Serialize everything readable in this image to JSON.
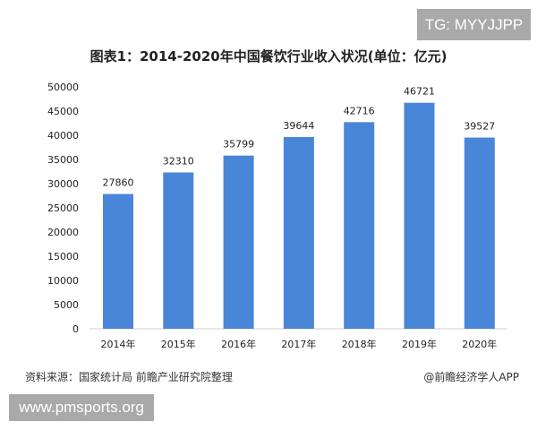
{
  "watermarks": {
    "tg": "TG: MYYJJPP",
    "site": "www.pmsports.org"
  },
  "chart_data": {
    "type": "bar",
    "title": "图表1：2014-2020年中国餐饮行业收入状况(单位：亿元)",
    "categories": [
      "2014年",
      "2015年",
      "2016年",
      "2017年",
      "2018年",
      "2019年",
      "2020年"
    ],
    "values": [
      27860,
      32310,
      35799,
      39644,
      42716,
      46721,
      39527
    ],
    "ylim": [
      0,
      50000
    ],
    "yticks": [
      0,
      5000,
      10000,
      15000,
      20000,
      25000,
      30000,
      35000,
      40000,
      45000,
      50000
    ],
    "xlabel": "",
    "ylabel": "",
    "grid": false,
    "bar_color": "#4a86d8",
    "data_labels": true
  },
  "footer": {
    "source": "资料来源：国家统计局 前瞻产业研究院整理",
    "credit": "@前瞻经济学人APP"
  }
}
